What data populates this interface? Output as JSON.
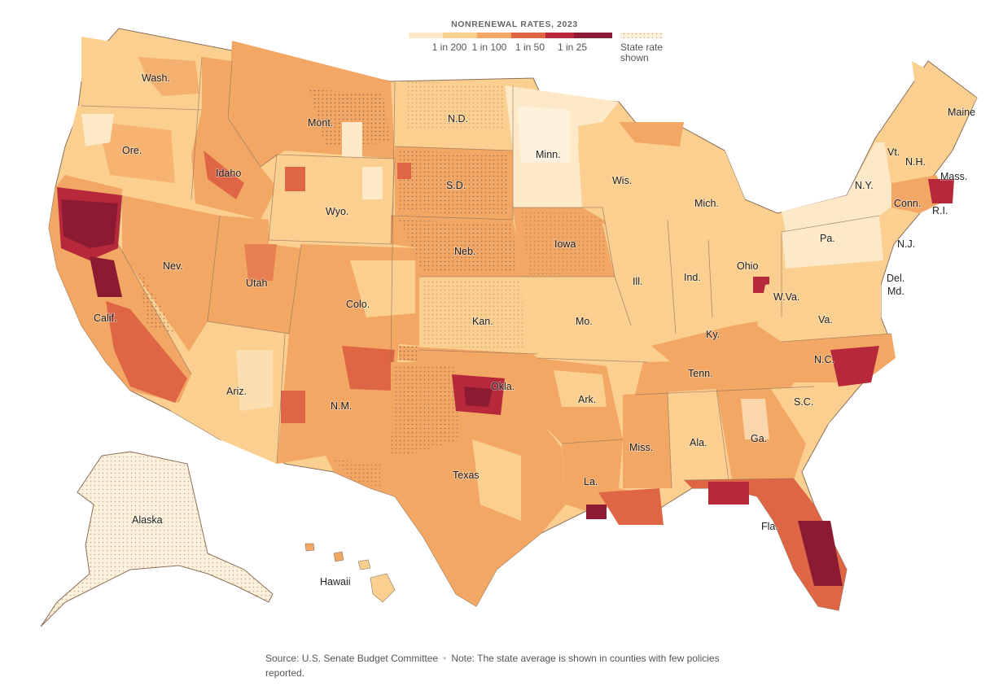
{
  "legend": {
    "title": "NONRENEWAL RATES, 2023",
    "ticks": [
      "1 in 200",
      "1 in 100",
      "1 in 50",
      "1 in 25"
    ],
    "colors": [
      "#fde9c8",
      "#fbcf8f",
      "#f3a765",
      "#de6645",
      "#b7283a",
      "#8c1a33"
    ],
    "state_rate_label_line1": "State rate",
    "state_rate_label_line2": "shown"
  },
  "colors": {
    "ocean": "#ffffff",
    "border": "#ffffff",
    "state_border": "#8a6f5a",
    "stipple": "#7a5a45"
  },
  "state_labels": {
    "wa": "Wash.",
    "or": "Ore.",
    "ca": "Calif.",
    "nv": "Nev.",
    "id": "Idaho",
    "mt": "Mont.",
    "wy": "Wyo.",
    "ut": "Utah",
    "az": "Ariz.",
    "co": "Colo.",
    "nm": "N.M.",
    "nd": "N.D.",
    "sd": "S.D.",
    "ne": "Neb.",
    "ks": "Kan.",
    "ok": "Okla.",
    "tx": "Texas",
    "mn": "Minn.",
    "ia": "Iowa",
    "mo": "Mo.",
    "ar": "Ark.",
    "la": "La.",
    "wi": "Wis.",
    "il": "Ill.",
    "mi": "Mich.",
    "in": "Ind.",
    "oh": "Ohio",
    "ky": "Ky.",
    "tn": "Tenn.",
    "ms": "Miss.",
    "al": "Ala.",
    "ga": "Ga.",
    "fl": "Fla.",
    "sc": "S.C.",
    "nc": "N.C.",
    "va": "Va.",
    "wv": "W.Va.",
    "pa": "Pa.",
    "ny": "N.Y.",
    "nj": "N.J.",
    "de": "Del.",
    "md": "Md.",
    "vt": "Vt.",
    "nh": "N.H.",
    "me": "Maine",
    "ma": "Mass.",
    "ct": "Conn.",
    "ri": "R.I.",
    "ak": "Alaska",
    "hi": "Hawaii"
  },
  "footer": {
    "source": "Source: U.S. Senate Budget Committee",
    "note": "Note: The state average is shown in counties with few policies reported."
  }
}
